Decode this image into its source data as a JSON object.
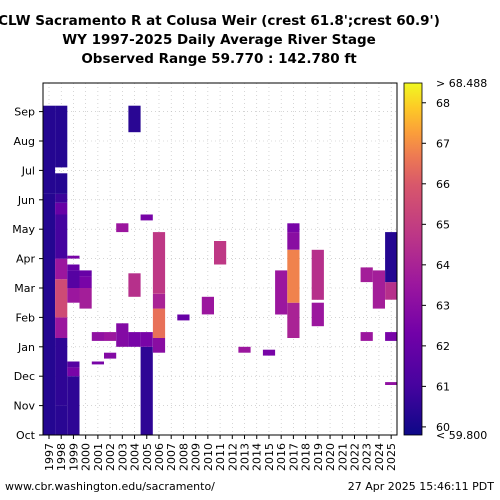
{
  "chart_data": {
    "type": "heatmap",
    "title_lines": [
      "CLW Sacramento R at Colusa Weir (crest 61.8';crest 60.9')",
      "WY 1997-2025 Daily Average River Stage",
      "Observed Range 59.770 : 142.780 ft"
    ],
    "x_categories": [
      "1997",
      "1998",
      "1999",
      "2000",
      "2001",
      "2002",
      "2003",
      "2004",
      "2005",
      "2006",
      "2007",
      "2008",
      "2009",
      "2010",
      "2011",
      "2012",
      "2013",
      "2014",
      "2015",
      "2016",
      "2017",
      "2018",
      "2019",
      "2020",
      "2021",
      "2022",
      "2023",
      "2024",
      "2025"
    ],
    "y_months": [
      "Oct",
      "Nov",
      "Dec",
      "Jan",
      "Feb",
      "Mar",
      "Apr",
      "May",
      "Jun",
      "Jul",
      "Aug",
      "Sep"
    ],
    "colorbar": {
      "min": 59.8,
      "max": 68.488,
      "ticks": [
        60,
        61,
        62,
        63,
        64,
        65,
        66,
        67,
        68
      ],
      "over_label": "> 68.488",
      "under_label": "< 59.800",
      "colormap": "plasma"
    },
    "segments": [
      {
        "year": "1997",
        "start": 0,
        "end": 8.2,
        "value": 60.3
      },
      {
        "year": "1997",
        "start": 8.2,
        "end": 11.2,
        "value": 60.3
      },
      {
        "year": "1998",
        "start": 0,
        "end": 1.0,
        "value": 60.4
      },
      {
        "year": "1998",
        "start": 1.0,
        "end": 3.3,
        "value": 60.5
      },
      {
        "year": "1998",
        "start": 3.3,
        "end": 4.0,
        "value": 63.5
      },
      {
        "year": "1998",
        "start": 4.0,
        "end": 5.3,
        "value": 65.5
      },
      {
        "year": "1998",
        "start": 5.3,
        "end": 6.0,
        "value": 63.5
      },
      {
        "year": "1998",
        "start": 6.0,
        "end": 7.5,
        "value": 61.0
      },
      {
        "year": "1998",
        "start": 7.5,
        "end": 7.9,
        "value": 62.0
      },
      {
        "year": "1998",
        "start": 7.9,
        "end": 8.2,
        "value": 60.8
      },
      {
        "year": "1998",
        "start": 8.2,
        "end": 8.9,
        "value": 60.3
      },
      {
        "year": "1998",
        "start": 9.1,
        "end": 11.2,
        "value": 60.3
      },
      {
        "year": "1999",
        "start": 0,
        "end": 2.0,
        "value": 60.5
      },
      {
        "year": "1999",
        "start": 2.0,
        "end": 2.3,
        "value": 62.5
      },
      {
        "year": "1999",
        "start": 2.3,
        "end": 2.5,
        "value": 61.5
      },
      {
        "year": "1999",
        "start": 4.5,
        "end": 5.0,
        "value": 63.5
      },
      {
        "year": "1999",
        "start": 5.0,
        "end": 5.6,
        "value": 61.5
      },
      {
        "year": "1999",
        "start": 5.6,
        "end": 5.8,
        "value": 62.0
      },
      {
        "year": "1999",
        "start": 6.0,
        "end": 6.1,
        "value": 62.5
      },
      {
        "year": "2000",
        "start": 4.3,
        "end": 5.0,
        "value": 63.8
      },
      {
        "year": "2000",
        "start": 5.0,
        "end": 5.4,
        "value": 62.5
      },
      {
        "year": "2000",
        "start": 5.4,
        "end": 5.6,
        "value": 62.0
      },
      {
        "year": "2001",
        "start": 3.2,
        "end": 3.5,
        "value": 63.2
      },
      {
        "year": "2001",
        "start": 2.4,
        "end": 2.5,
        "value": 62.5
      },
      {
        "year": "2002",
        "start": 2.6,
        "end": 2.8,
        "value": 62.8
      },
      {
        "year": "2002",
        "start": 3.2,
        "end": 3.5,
        "value": 63.5
      },
      {
        "year": "2003",
        "start": 3.0,
        "end": 3.8,
        "value": 62.8
      },
      {
        "year": "2003",
        "start": 6.9,
        "end": 7.2,
        "value": 63.5
      },
      {
        "year": "2004",
        "start": 3.0,
        "end": 3.5,
        "value": 62.5
      },
      {
        "year": "2004",
        "start": 4.7,
        "end": 5.5,
        "value": 64.5
      },
      {
        "year": "2004",
        "start": 10.3,
        "end": 11.2,
        "value": 60.4
      },
      {
        "year": "2005",
        "start": 0,
        "end": 3.0,
        "value": 60.5
      },
      {
        "year": "2005",
        "start": 3.0,
        "end": 3.5,
        "value": 62.5
      },
      {
        "year": "2005",
        "start": 7.3,
        "end": 7.5,
        "value": 62.5
      },
      {
        "year": "2006",
        "start": 2.8,
        "end": 3.3,
        "value": 63.0
      },
      {
        "year": "2006",
        "start": 3.3,
        "end": 4.3,
        "value": 66.5
      },
      {
        "year": "2006",
        "start": 4.3,
        "end": 4.8,
        "value": 64.0
      },
      {
        "year": "2006",
        "start": 4.8,
        "end": 6.9,
        "value": 64.8
      },
      {
        "year": "2008",
        "start": 3.9,
        "end": 4.1,
        "value": 62.0
      },
      {
        "year": "2010",
        "start": 4.1,
        "end": 4.7,
        "value": 63.5
      },
      {
        "year": "2011",
        "start": 5.8,
        "end": 6.6,
        "value": 64.8
      },
      {
        "year": "2013",
        "start": 2.8,
        "end": 3.0,
        "value": 63.5
      },
      {
        "year": "2015",
        "start": 2.7,
        "end": 2.9,
        "value": 62.5
      },
      {
        "year": "2016",
        "start": 4.1,
        "end": 5.6,
        "value": 63.5
      },
      {
        "year": "2017",
        "start": 3.3,
        "end": 4.5,
        "value": 64.0
      },
      {
        "year": "2017",
        "start": 4.5,
        "end": 6.3,
        "value": 66.8
      },
      {
        "year": "2017",
        "start": 6.3,
        "end": 6.9,
        "value": 63.0
      },
      {
        "year": "2017",
        "start": 6.9,
        "end": 7.2,
        "value": 62.5
      },
      {
        "year": "2019",
        "start": 3.7,
        "end": 4.5,
        "value": 63.5
      },
      {
        "year": "2019",
        "start": 4.6,
        "end": 6.3,
        "value": 64.5
      },
      {
        "year": "2023",
        "start": 3.2,
        "end": 3.5,
        "value": 63.5
      },
      {
        "year": "2023",
        "start": 5.2,
        "end": 5.7,
        "value": 63.8
      },
      {
        "year": "2024",
        "start": 4.3,
        "end": 5.6,
        "value": 63.8
      },
      {
        "year": "2025",
        "start": 1.7,
        "end": 1.8,
        "value": 63.2
      },
      {
        "year": "2025",
        "start": 3.2,
        "end": 3.5,
        "value": 62.5
      },
      {
        "year": "2025",
        "start": 4.6,
        "end": 5.2,
        "value": 64.5
      },
      {
        "year": "2025",
        "start": 5.2,
        "end": 6.9,
        "value": 60.3
      }
    ]
  },
  "footer": {
    "url": "www.cbr.washington.edu/sacramento/",
    "timestamp": "27 Apr 2025 15:46:11 PDT"
  }
}
